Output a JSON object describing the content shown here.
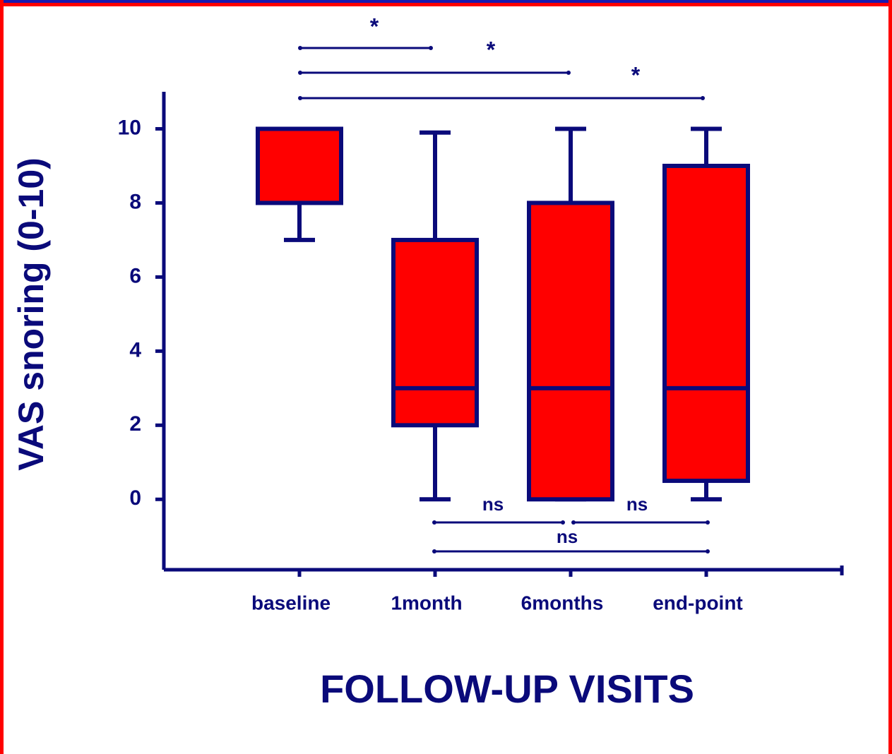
{
  "chart_data": {
    "type": "box",
    "x_label": "FOLLOW-UP VISITS",
    "y_label": "VAS snoring (0-10)",
    "categories": [
      "baseline",
      "1month",
      "6months",
      "end-point"
    ],
    "boxes": [
      {
        "min": 7,
        "q1": 8,
        "median": 10,
        "q3": 10,
        "max": 10
      },
      {
        "min": 0,
        "q1": 2,
        "median": 3,
        "q3": 7,
        "max": 9.9
      },
      {
        "min": 0,
        "q1": 0,
        "median": 3,
        "q3": 8,
        "max": 10
      },
      {
        "min": 0,
        "q1": 0.5,
        "median": 3,
        "q3": 9,
        "max": 10
      }
    ],
    "color": "#ff0000",
    "edge_color": "#0a0a7a",
    "ylim": [
      -1.9,
      11
    ],
    "yticks": [
      0,
      2,
      4,
      6,
      8,
      10
    ],
    "annotations": [
      "*",
      "*",
      "*",
      "ns",
      "ns",
      "ns"
    ]
  }
}
